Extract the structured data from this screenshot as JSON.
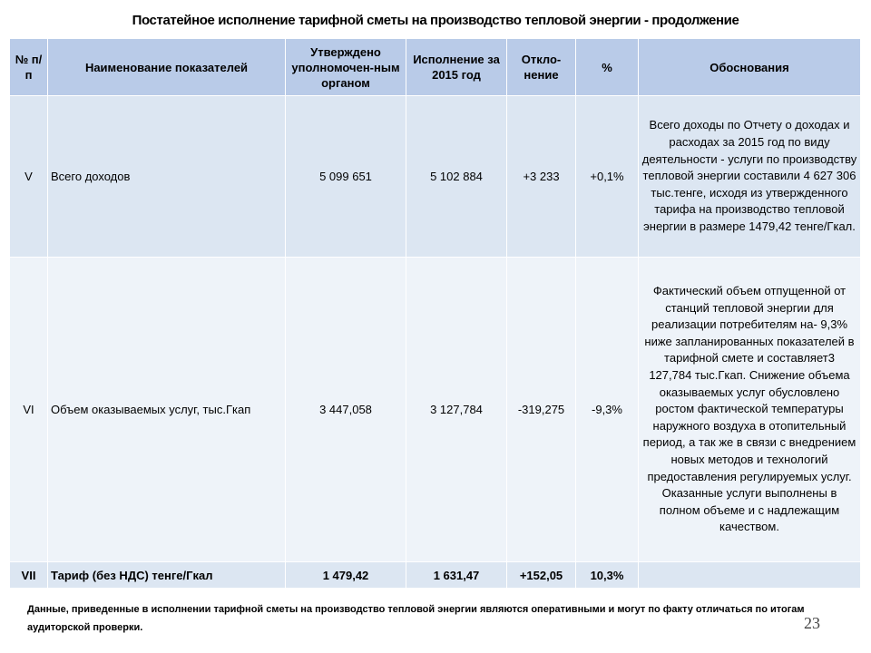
{
  "title": "Постатейное исполнение тарифной сметы на производство тепловой энергии - продолжение",
  "table": {
    "headers": {
      "num": "№ п/п",
      "name": "Наименование показателей",
      "approved": "Утверждено уполномочен-ным органом",
      "actual": "Исполнение за 2015 год",
      "deviation": "Откло-нение",
      "percent": "%",
      "reason": "Обоснования"
    },
    "rows": [
      {
        "num": "V",
        "name": "Всего доходов",
        "approved": "5 099 651",
        "actual": "5 102 884",
        "deviation": "+3 233",
        "percent": "+0,1%",
        "reason": "Всего доходы по Отчету о доходах и расходах за 2015 год по виду деятельности - услуги по производству тепловой энергии составили 4 627 306 тыс.тенге, исходя из утвержденного тарифа на производство тепловой энергии в размере 1479,42 тенге/Гкал."
      },
      {
        "num": "VI",
        "name": "Объем оказываемых услуг, тыс.Гкап",
        "approved": "3 447,058",
        "actual": "3 127,784",
        "deviation": "-319,275",
        "percent": "-9,3%",
        "reason": "Фактический объем отпущенной от станций тепловой энергии для реализации потребителям на- 9,3% ниже запланированных показателей в тарифной смете и составляет3 127,784 тыс.Гкап. Снижение объема оказываемых услуг обусловлено ростом фактической температуры наружного воздуха в отопительный период, а так же в связи с внедрением новых методов и технологий предоставления регулируемых услуг. Оказанные услуги выполнены в полном объеме и с надлежащим качеством."
      },
      {
        "num": "VII",
        "name": "Тариф (без НДС) тенге/Гкал",
        "approved": "1 479,42",
        "actual": "1 631,47",
        "deviation": "+152,05",
        "percent": "10,3%",
        "reason": ""
      }
    ]
  },
  "footnote": "Данные, приведенные в исполнении тарифной сметы на производство тепловой энергии являются оперативными и могут по факту отличаться по итогам аудиторской проверки.",
  "page_number": "23"
}
